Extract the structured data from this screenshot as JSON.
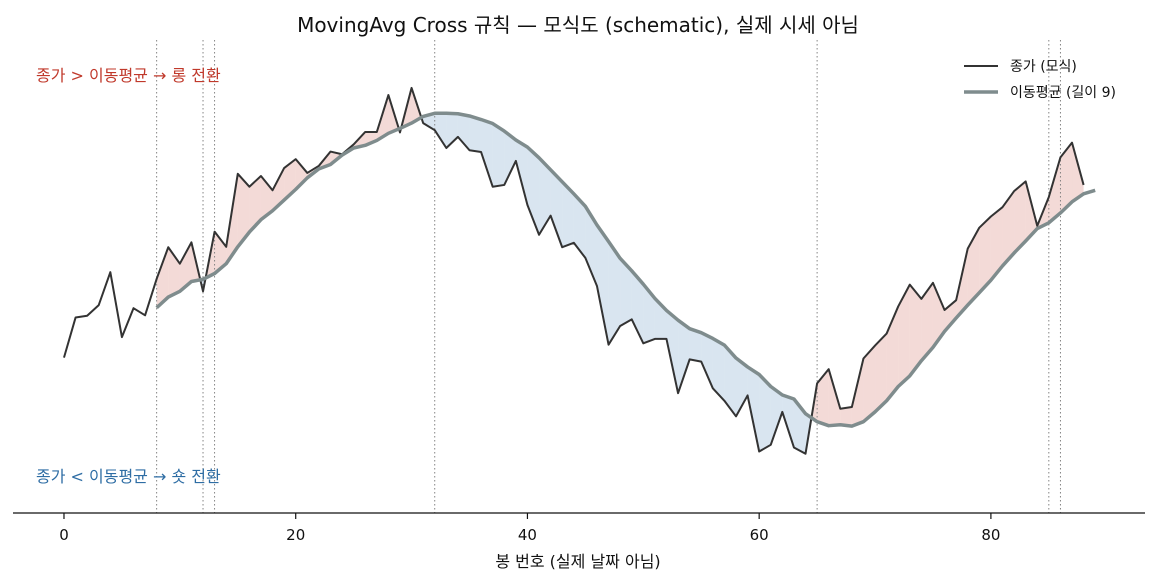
{
  "chart_data": {
    "type": "line",
    "title": "MovingAvg Cross 규칙 — 모식도 (schematic), 실제 시세 아님",
    "xlabel": "봉 번호 (실제 날짜 아님)",
    "ylabel": "",
    "xlim": [
      -4.4,
      93.3
    ],
    "ylim": [
      0,
      100
    ],
    "x_ticks": [
      0,
      20,
      40,
      60,
      80
    ],
    "grid": false,
    "legend_position": "top-right",
    "annotations": {
      "long": "종가 > 이동평균 → 롱 전환",
      "short": "종가 < 이동평균 → 숏 전환"
    },
    "crosses": [
      8,
      12,
      13,
      32,
      65,
      85,
      86
    ],
    "series": [
      {
        "name": "종가 (모식)",
        "color": "#333333",
        "values": [
          32,
          41,
          41.4,
          43.8,
          51.2,
          36.6,
          43.1,
          41.5,
          49.7,
          56.8,
          53.1,
          57.9,
          46.9,
          60.3,
          56.9,
          73.3,
          70.4,
          72.8,
          69.6,
          74.6,
          76.6,
          73.5,
          75.1,
          78.3,
          77.7,
          79.9,
          82.7,
          82.7,
          91,
          82.6,
          92.6,
          84.7,
          83.1,
          79.1,
          81.6,
          78.6,
          78.2,
          70.4,
          70.8,
          76.2,
          66.3,
          59.6,
          63.9,
          56.8,
          57.8,
          54.4,
          48.1,
          34.9,
          39.1,
          40.6,
          35.2,
          36.2,
          36.2,
          24,
          31.6,
          31.1,
          25.1,
          22.3,
          18.8,
          23.5,
          10.9,
          12.4,
          19.8,
          11.8,
          10.4,
          26.2,
          29.4,
          20.5,
          20.9,
          31.8,
          34.7,
          37.4,
          43.5,
          48.4,
          45.2,
          48.8,
          42.7,
          44.9,
          56.5,
          61.2,
          63.7,
          65.8,
          69.4,
          71.6,
          61.6,
          68.1,
          77,
          80.3,
          70.8
        ]
      },
      {
        "name": "이동평균 (길이 9)",
        "color": "#7f8c8d",
        "start_x": 8,
        "values": [
          43.2,
          45.6,
          46.9,
          49.1,
          49.6,
          50.9,
          53.1,
          56.9,
          60.2,
          63,
          65,
          67.4,
          69.8,
          72.4,
          74.4,
          75.4,
          77.5,
          79.1,
          79.7,
          80.8,
          82.4,
          83.5,
          84.7,
          86.2,
          86.9,
          86.9,
          86.8,
          86.3,
          85.5,
          84.6,
          82.9,
          80.9,
          79.3,
          76.9,
          74.2,
          71.5,
          68.8,
          66,
          61.8,
          58.1,
          54.3,
          51.5,
          48.5,
          45.3,
          42.6,
          40.4,
          38.5,
          37.6,
          36.3,
          34.8,
          31.9,
          29.9,
          28.2,
          25.5,
          23.6,
          22.7,
          19.4,
          17.6,
          16.7,
          16.9,
          16.6,
          17.6,
          19.8,
          22.3,
          25.5,
          27.9,
          31.3,
          34.3,
          37.9,
          40.9,
          43.8,
          46.6,
          49.4,
          52.6,
          55.5,
          58.2,
          61,
          62.3,
          64.5,
          67,
          68.8,
          69.6
        ]
      }
    ]
  }
}
